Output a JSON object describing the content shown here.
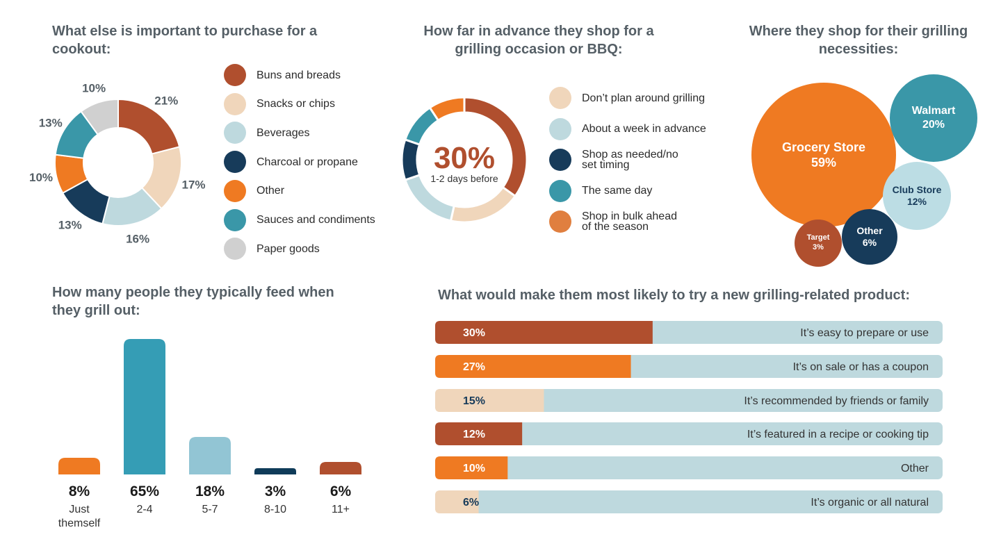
{
  "colors": {
    "rust": "#b04f2e",
    "peach": "#f0d6bb",
    "light_blue": "#bed9de",
    "navy": "#173b5a",
    "orange": "#ef7a22",
    "teal": "#3a97a8",
    "grey": "#d0d0d0",
    "col_teal": "#359db5",
    "col_light": "#92c5d4",
    "col_navy": "#0f3b59",
    "bubble_light": "#bcdde4",
    "track": "#bed9de"
  },
  "chart_data": [
    {
      "type": "pie",
      "title": "What else is important to purchase for a cookout:",
      "categories": [
        "Buns and breads",
        "Snacks or chips",
        "Beverages",
        "Charcoal or propane",
        "Other",
        "Sauces and condiments",
        "Paper goods"
      ],
      "values": [
        21,
        17,
        16,
        13,
        10,
        13,
        10
      ],
      "value_labels": [
        "21%",
        "17%",
        "16%",
        "13%",
        "10%",
        "13%",
        "10%"
      ],
      "colors": [
        "#b04f2e",
        "#f0d6bb",
        "#bed9de",
        "#173b5a",
        "#ef7a22",
        "#3a97a8",
        "#d0d0d0"
      ],
      "legend_position": "right"
    },
    {
      "type": "pie",
      "title": "How far in advance they shop for a grilling occasion or BBQ:",
      "categories": [
        "1-2 days before",
        "Don’t plan around grilling",
        "About a week in advance",
        "Shop as needed/no set timing",
        "The same day",
        "Shop in bulk ahead of the season"
      ],
      "values": [
        30,
        16,
        14,
        9,
        9,
        8
      ],
      "colors": [
        "#b04f2e",
        "#f0d6bb",
        "#bed9de",
        "#173b5a",
        "#3a97a8",
        "#ef7a22"
      ],
      "center_value": "30%",
      "center_label": "1-2 days before",
      "legend": [
        {
          "label": "Don’t plan around grilling",
          "color": "#f0d6bb"
        },
        {
          "label": "About a week in advance",
          "color": "#bed9de"
        },
        {
          "label": "Shop as needed/no\nset timing",
          "color": "#173b5a"
        },
        {
          "label": "The same day",
          "color": "#3a97a8"
        },
        {
          "label": "Shop in bulk ahead\nof the season",
          "color": "#e07f3f"
        }
      ],
      "legend_position": "right"
    },
    {
      "type": "bubble",
      "title": "Where they shop for their grilling necessities:",
      "categories": [
        "Grocery Store",
        "Walmart",
        "Club Store",
        "Other",
        "Target"
      ],
      "values": [
        59,
        20,
        12,
        6,
        3
      ],
      "value_labels": [
        "59%",
        "20%",
        "12%",
        "6%",
        "3%"
      ],
      "colors": [
        "#ef7a22",
        "#3a97a8",
        "#bcdde4",
        "#173b5a",
        "#b04f2e"
      ]
    },
    {
      "type": "bar",
      "title": "How many people they typically feed when they grill out:",
      "categories": [
        "Just\nthemself",
        "2-4",
        "5-7",
        "8-10",
        "11+"
      ],
      "values": [
        8,
        65,
        18,
        3,
        6
      ],
      "value_labels": [
        "8%",
        "65%",
        "18%",
        "3%",
        "6%"
      ],
      "colors": [
        "#ef7a22",
        "#359db5",
        "#92c5d4",
        "#0f3b59",
        "#b04f2e"
      ],
      "ylim": [
        0,
        65
      ]
    },
    {
      "type": "bar",
      "orientation": "horizontal",
      "title": "What would make them most likely to try a new grilling-related product:",
      "categories": [
        "It’s easy to prepare or use",
        "It’s on sale or has a coupon",
        "It’s recommended by friends or family",
        "It’s featured in a recipe or cooking tip",
        "Other",
        "It’s organic or all natural"
      ],
      "values": [
        30,
        27,
        15,
        12,
        10,
        6
      ],
      "value_labels": [
        "30%",
        "27%",
        "15%",
        "12%",
        "10%",
        "6%"
      ],
      "colors": [
        "#b04f2e",
        "#ef7a22",
        "#f0d6bb",
        "#b04f2e",
        "#ef7a22",
        "#f0d6bb"
      ],
      "label_colors": [
        "#ffffff",
        "#ffffff",
        "#173b5a",
        "#ffffff",
        "#ffffff",
        "#173b5a"
      ],
      "xlim": [
        0,
        70
      ]
    }
  ]
}
